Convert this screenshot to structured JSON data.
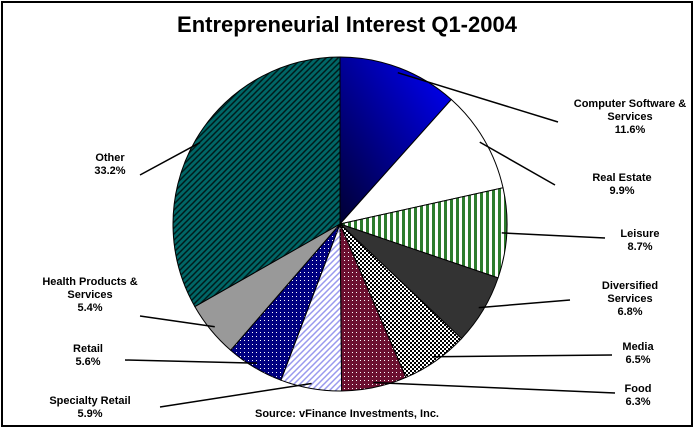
{
  "chart_data": {
    "type": "pie",
    "title": "Entrepreneurial Interest Q1-2004",
    "source": "Source: vFinance Investments, Inc.",
    "categories": [
      "Computer Software & Services",
      "Real Estate",
      "Leisure",
      "Diversified Services",
      "Media",
      "Food",
      "Specialty Retail",
      "Retail",
      "Health Products & Services",
      "Other"
    ],
    "values": [
      11.6,
      9.9,
      8.7,
      6.8,
      6.5,
      6.3,
      5.9,
      5.6,
      5.4,
      33.2
    ],
    "value_labels": [
      "11.6%",
      "9.9%",
      "8.7%",
      "6.8%",
      "6.5%",
      "6.3%",
      "5.9%",
      "5.6%",
      "5.4%",
      "33.2%"
    ],
    "colors": [
      "#0000cc",
      "#ffffff",
      "#2e7d2e",
      "#333333",
      "#000000",
      "#6b1030",
      "#9999ee",
      "#000080",
      "#999999",
      "#006666"
    ]
  }
}
